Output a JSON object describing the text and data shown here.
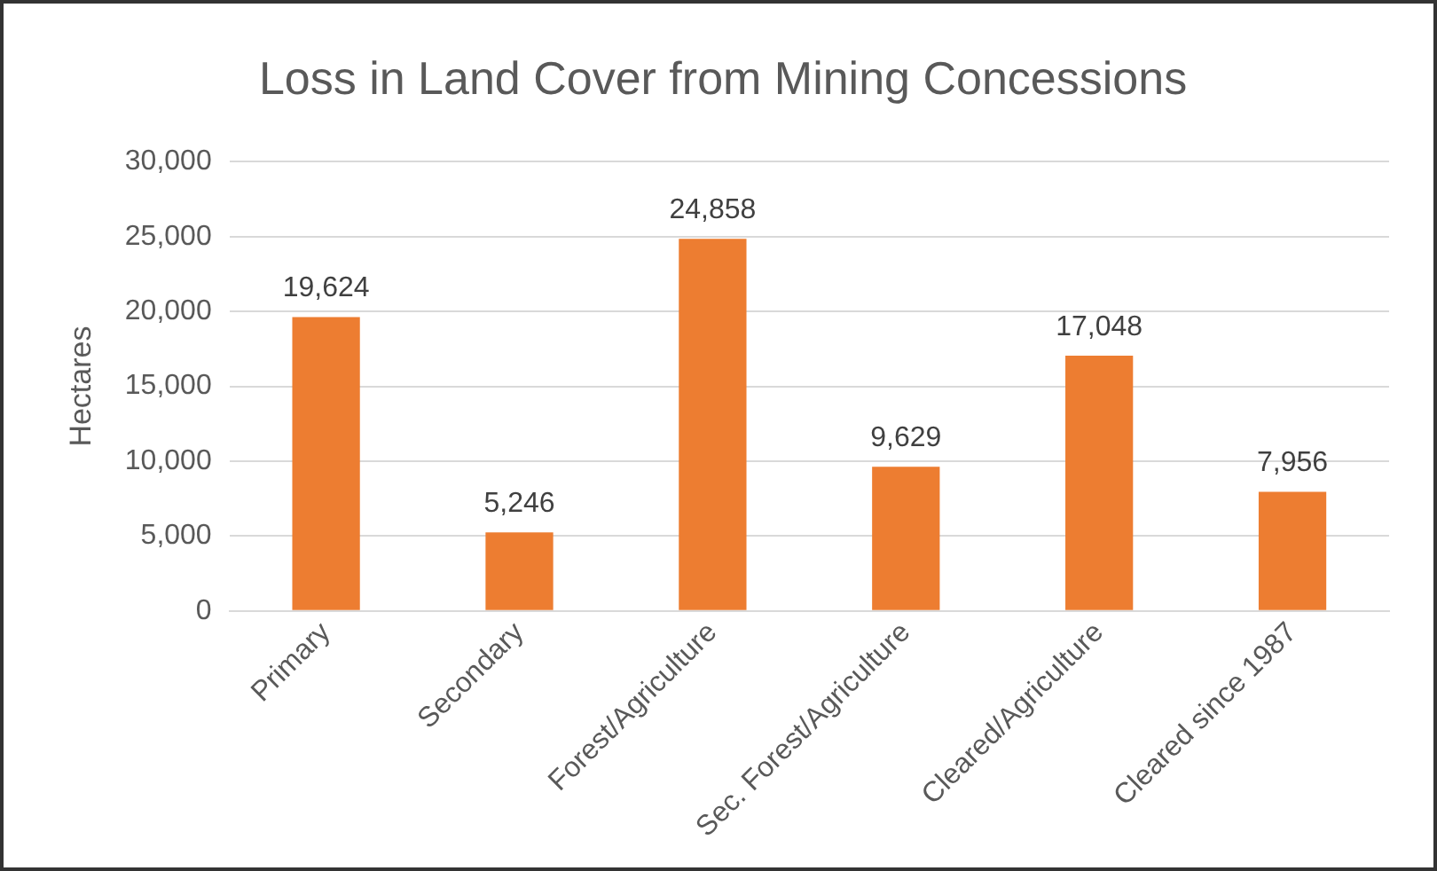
{
  "chart_data": {
    "type": "bar",
    "title": "Loss in Land Cover from Mining Concessions",
    "ylabel": "Hectares",
    "categories": [
      "Primary",
      "Secondary",
      "Forest/Agriculture",
      "Sec. Forest/Agriculture",
      "Cleared/Agriculture",
      "Cleared since 1987"
    ],
    "values": [
      19624,
      5246,
      24858,
      9629,
      17048,
      7956
    ],
    "value_labels": [
      "19,624",
      "5,246",
      "24,858",
      "9,629",
      "17,048",
      "7,956"
    ],
    "color": "#ed7d31",
    "ylim": [
      0,
      30000
    ],
    "yticks": [
      {
        "value": 0,
        "label": "0"
      },
      {
        "value": 5000,
        "label": "5,000"
      },
      {
        "value": 10000,
        "label": "10,000"
      },
      {
        "value": 15000,
        "label": "15,000"
      },
      {
        "value": 20000,
        "label": "20,000"
      },
      {
        "value": 25000,
        "label": "25,000"
      },
      {
        "value": 30000,
        "label": "30,000"
      }
    ],
    "grid": "y",
    "legend": false
  }
}
